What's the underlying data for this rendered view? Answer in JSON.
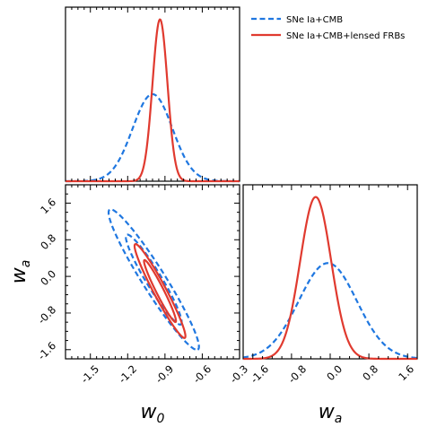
{
  "chart_data": [
    {
      "type": "line",
      "panel": "w0 marginal",
      "xlim": [
        -1.7,
        -0.3
      ],
      "ylim": [
        0,
        1
      ],
      "series": [
        {
          "name": "SNe Ia+CMB",
          "style": "dashed",
          "color": "#1f77e0",
          "peak_x": -1.0,
          "sigma": 0.16,
          "peak": 0.5
        },
        {
          "name": "SNe Ia+CMB+lensed FRBs",
          "style": "solid",
          "color": "#e03a2f",
          "peak_x": -0.94,
          "sigma": 0.06,
          "peak": 0.93
        }
      ]
    },
    {
      "type": "contour",
      "panel": "w0-wa joint",
      "xlabel": "w_0",
      "ylabel": "w_a",
      "xlim": [
        -1.7,
        -0.3
      ],
      "ylim": [
        -1.8,
        2.0
      ],
      "xticks": [
        "-1.5",
        "-1.2",
        "-0.9",
        "-0.6",
        "-0.3"
      ],
      "yticks": [
        "-1.6",
        "-0.8",
        "0.0",
        "0.8",
        "1.6"
      ],
      "series": [
        {
          "name": "SNe Ia+CMB",
          "style": "dashed",
          "color": "#1f77e0",
          "ellipses": [
            {
              "level": "1sigma",
              "center": [
                -0.99,
                -0.07
              ],
              "semi_major": 1.11,
              "semi_minor": 0.155,
              "angle_deg": -62
            },
            {
              "level": "2sigma",
              "center": [
                -0.99,
                -0.07
              ],
              "semi_major": 1.75,
              "semi_minor": 0.23,
              "angle_deg": -61
            }
          ]
        },
        {
          "name": "SNe Ia+CMB+lensed FRBs",
          "style": "solid",
          "color": "#e03a2f",
          "ellipses": [
            {
              "level": "1sigma",
              "center": [
                -0.94,
                -0.32
              ],
              "semi_major": 0.74,
              "semi_minor": 0.075,
              "angle_deg": -66
            },
            {
              "level": "2sigma",
              "center": [
                -0.94,
                -0.32
              ],
              "semi_major": 1.13,
              "semi_minor": 0.125,
              "angle_deg": -65
            }
          ]
        }
      ]
    },
    {
      "type": "line",
      "panel": "wa marginal",
      "xlabel": "w_a",
      "xlim": [
        -1.8,
        1.8
      ],
      "ylim": [
        0,
        1
      ],
      "xticks": [
        "-1.6",
        "-0.8",
        "0.0",
        "0.8",
        "1.6"
      ],
      "series": [
        {
          "name": "SNe Ia+CMB",
          "style": "dashed",
          "color": "#1f77e0",
          "peak_x": -0.05,
          "sigma": 0.6,
          "peak": 0.55
        },
        {
          "name": "SNe Ia+CMB+lensed FRBs",
          "style": "solid",
          "color": "#e03a2f",
          "peak_x": -0.3,
          "sigma": 0.32,
          "peak": 0.93
        }
      ]
    }
  ],
  "legend": {
    "placement": "top-right",
    "entries": [
      {
        "label": "SNe Ia+CMB",
        "style": "dashed",
        "color": "#1f77e0"
      },
      {
        "label": "SNe Ia+CMB+lensed FRBs",
        "style": "solid",
        "color": "#e03a2f"
      }
    ]
  }
}
